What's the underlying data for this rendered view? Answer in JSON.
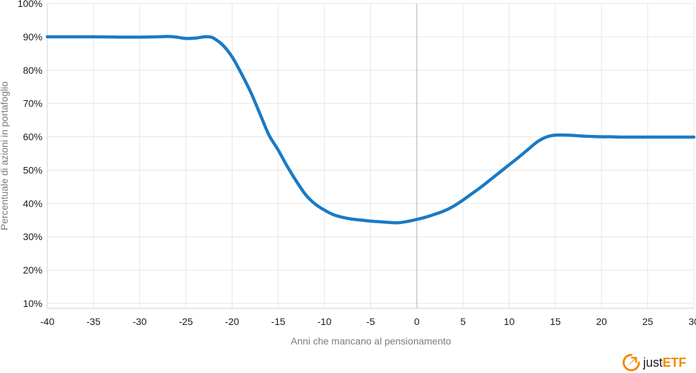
{
  "chart_data": {
    "type": "line",
    "title": "",
    "xlabel": "Anni che mancano al pensionamento",
    "ylabel": "Percentuale di azioni in portafoglio",
    "xlim": [
      -40,
      30
    ],
    "ylim": [
      10,
      100
    ],
    "x_ticks": [
      -40,
      -35,
      -30,
      -25,
      -20,
      -15,
      -10,
      -5,
      0,
      5,
      10,
      15,
      20,
      25,
      30
    ],
    "x_tick_labels": [
      "-40",
      "-35",
      "-30",
      "-25",
      "-20",
      "-15",
      "-10",
      "-5",
      "0",
      "5",
      "10",
      "15",
      "20",
      "25",
      "30"
    ],
    "y_ticks": [
      10,
      20,
      30,
      40,
      50,
      60,
      70,
      80,
      90,
      100
    ],
    "y_tick_labels": [
      "10%",
      "20%",
      "30%",
      "40%",
      "50%",
      "60%",
      "70%",
      "80%",
      "90%",
      "100%"
    ],
    "grid": true,
    "reference_line_x": 0,
    "series": [
      {
        "color": "#1a7ac4",
        "x": [
          -40,
          -38,
          -35,
          -32,
          -30,
          -28,
          -27,
          -26,
          -25,
          -24,
          -23,
          -22.5,
          -22,
          -21,
          -20,
          -19,
          -18,
          -17,
          -16,
          -15,
          -14,
          -13,
          -12,
          -11,
          -10,
          -9,
          -8,
          -7,
          -6,
          -5,
          -4,
          -3,
          -2,
          -1,
          0,
          1,
          2,
          3,
          4,
          5,
          6,
          7,
          8,
          9,
          10,
          11,
          12,
          13,
          14,
          15,
          16,
          17,
          18,
          19,
          20,
          21,
          22,
          23,
          24,
          25,
          26,
          27,
          28,
          29,
          30
        ],
        "y": [
          90,
          90,
          90,
          89.9,
          89.9,
          90,
          90.1,
          89.9,
          89.5,
          89.6,
          90,
          90,
          89.6,
          87.5,
          84,
          79,
          73.5,
          67,
          60.5,
          56,
          51,
          46.5,
          42.5,
          39.8,
          38,
          36.6,
          35.8,
          35.3,
          35,
          34.7,
          34.5,
          34.3,
          34.2,
          34.6,
          35.2,
          35.9,
          36.8,
          37.8,
          39.2,
          41,
          43,
          45,
          47.2,
          49.4,
          51.6,
          53.8,
          56.1,
          58.4,
          59.9,
          60.5,
          60.5,
          60.4,
          60.2,
          60.1,
          60,
          60,
          59.9,
          59.9,
          59.9,
          59.9,
          59.9,
          59.9,
          59.9,
          59.9,
          59.9
        ]
      }
    ]
  },
  "logo": {
    "name": "justETF",
    "part1": "just",
    "part2": "ETF",
    "mark_icon": "compass-arrow-icon",
    "accent_color": "#f08a00"
  }
}
